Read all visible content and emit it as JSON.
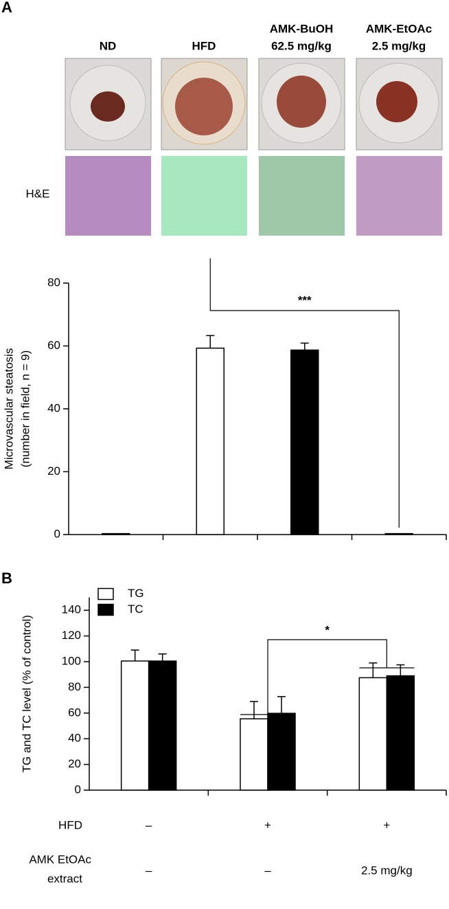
{
  "panel_a": {
    "label": "A",
    "groups": [
      [
        "ND"
      ],
      [
        "HFD"
      ],
      [
        "AMK-BuOH",
        "62.5 mg/kg"
      ],
      [
        "AMK-EtOAc",
        "2.5 mg/kg"
      ]
    ],
    "stain": "H&E"
  },
  "panel_b": {
    "label": "B"
  },
  "chart_data": [
    {
      "type": "bar",
      "ylabel": [
        "Microvascular steatosis",
        "(number in field, n = 9)"
      ],
      "categories": [
        null,
        null,
        null,
        null
      ],
      "values": [
        0.3,
        59.3,
        58.7,
        0.3
      ],
      "errors": [
        0,
        4,
        2.2,
        0
      ],
      "colors": [
        "#ffffff",
        "#ffffff",
        "#000000",
        "#ffffff"
      ],
      "ylim": [
        0,
        80
      ],
      "yticks": [
        0,
        20,
        40,
        60,
        80
      ],
      "annotation": "***"
    },
    {
      "type": "grouped_bar",
      "ylabel": [
        "TG and TC level (% of control)"
      ],
      "categories": [
        null,
        null,
        null
      ],
      "series": [
        {
          "name": "TG",
          "color": "#ffffff",
          "values": [
            100.5,
            55.5,
            87.5
          ],
          "errors": [
            8.5,
            13.5,
            11.5
          ]
        },
        {
          "name": "TC",
          "color": "#000000",
          "values": [
            100.5,
            59.8,
            89
          ],
          "errors": [
            5.5,
            13,
            8.5
          ]
        }
      ],
      "ylim": [
        0,
        150
      ],
      "yticks": [
        0,
        20,
        40,
        60,
        80,
        100,
        120,
        140
      ],
      "legend": "upper left",
      "annotation": "*",
      "rows": [
        {
          "label": [
            "HFD"
          ],
          "values": [
            "–",
            "+",
            "+"
          ]
        },
        {
          "label": [
            "AMK EtOAc",
            "extract"
          ],
          "values": [
            "–",
            "–",
            "2.5 mg/kg"
          ]
        }
      ]
    }
  ]
}
